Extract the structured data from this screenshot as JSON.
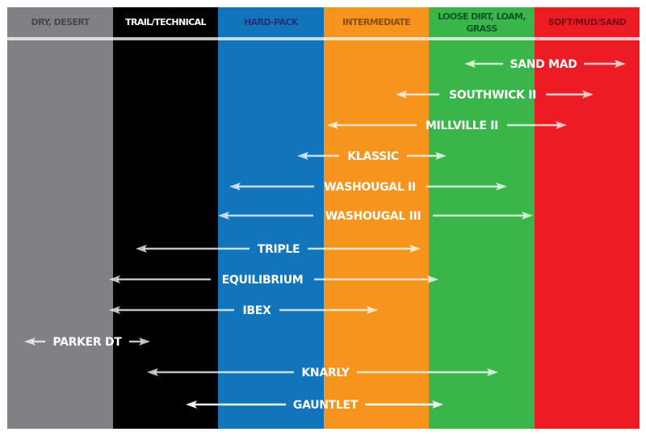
{
  "columns": [
    {
      "label": "DRY, DESERT",
      "color": "#808184",
      "text_color": "#4d4545"
    },
    {
      "label": "TRAIL/TECHNICAL",
      "color": "#000000",
      "text_color": "#ffffff"
    },
    {
      "label": "HARD-PACK",
      "color": "#1275bc",
      "text_color": "#27307a"
    },
    {
      "label": "INTERMEDIATE",
      "color": "#f7941d",
      "text_color": "#8a4f10"
    },
    {
      "label": "LOOSE DIRT, LOAM,|GRASS",
      "color": "#39b54a",
      "text_color": "#10552a"
    },
    {
      "label": "SOFT/MUD/SAND",
      "color": "#ed1c24",
      "text_color": "#7a0c12"
    }
  ],
  "tires": [
    {
      "name": "SAND MAD"
    },
    {
      "name": "SOUTHWICK II"
    },
    {
      "name": "MILLVILLE II"
    },
    {
      "name": "KLASSIC"
    },
    {
      "name": "WASHOUGAL II"
    },
    {
      "name": "WASHOUGAL III"
    },
    {
      "name": "TRIPLE"
    },
    {
      "name": "EQUILIBRIUM"
    },
    {
      "name": "IBEX"
    },
    {
      "name": "PARKER DT"
    },
    {
      "name": "KNARLY"
    },
    {
      "name": "GAUNTLET"
    }
  ],
  "arrow_color": "#ffffff"
}
